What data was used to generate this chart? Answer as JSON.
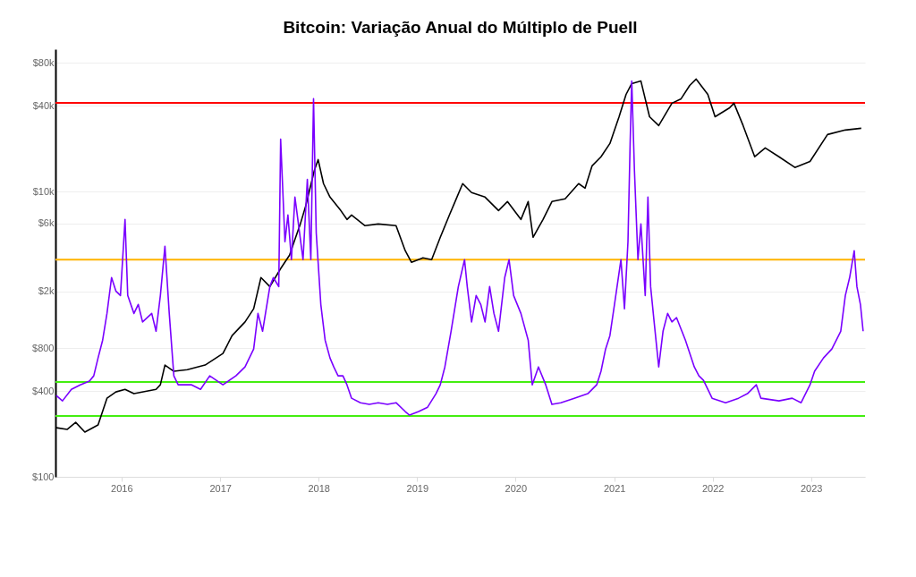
{
  "chart_data": {
    "type": "line",
    "title": "Bitcoin: Variação Anual do Múltiplo de Puell",
    "log": true,
    "grid": "y",
    "xlim": [
      "2015-05-01",
      "2023-07-20"
    ],
    "xticks": [
      "2016",
      "2017",
      "2018",
      "2019",
      "2020",
      "2021",
      "2022",
      "2023"
    ],
    "ylim": [
      100,
      100000
    ],
    "yticks": [
      {
        "value": 100,
        "label": "$100"
      },
      {
        "value": 400,
        "label": "$400"
      },
      {
        "value": 800,
        "label": "$800"
      },
      {
        "value": 2000,
        "label": "$2k"
      },
      {
        "value": 6000,
        "label": "$6k"
      },
      {
        "value": 10000,
        "label": "$10k"
      },
      {
        "value": 40000,
        "label": "$40k"
      },
      {
        "value": 80000,
        "label": "$80k"
      }
    ],
    "ref_lines": [
      {
        "axis": "y",
        "value": 42000,
        "color": "#ff0000"
      },
      {
        "axis": "y",
        "value": 3340,
        "color": "#ffb300"
      },
      {
        "axis": "y",
        "value": 462,
        "color": "#44ee11"
      },
      {
        "axis": "y",
        "value": 267,
        "color": "#44ee11"
      }
    ],
    "series": [
      {
        "color": "#000000",
        "x": [
          "2015-05-04",
          "2015-06-13",
          "2015-07-15",
          "2015-08-18",
          "2015-10-06",
          "2015-11-08",
          "2015-12-11",
          "2016-01-14",
          "2016-02-16",
          "2016-05-08",
          "2016-05-24",
          "2016-06-10",
          "2016-07-13",
          "2016-09-01",
          "2016-11-06",
          "2017-01-11",
          "2017-02-14",
          "2017-04-03",
          "2017-05-05",
          "2017-06-01",
          "2017-07-04",
          "2017-08-13",
          "2017-09-15",
          "2017-10-02",
          "2017-10-25",
          "2017-11-14",
          "2017-12-16",
          "2017-12-30",
          "2018-01-19",
          "2018-02-12",
          "2018-03-24",
          "2018-04-16",
          "2018-05-03",
          "2018-06-22",
          "2018-08-10",
          "2018-10-15",
          "2018-11-18",
          "2018-12-11",
          "2019-01-23",
          "2019-02-24",
          "2019-03-28",
          "2019-05-01",
          "2019-06-19",
          "2019-07-22",
          "2019-09-10",
          "2019-10-30",
          "2019-12-02",
          "2020-01-21",
          "2020-02-17",
          "2020-03-06",
          "2020-04-12",
          "2020-05-15",
          "2020-07-03",
          "2020-08-22",
          "2020-09-15",
          "2020-10-11",
          "2020-11-13",
          "2020-12-16",
          "2021-01-19",
          "2021-02-14",
          "2021-03-07",
          "2021-04-10",
          "2021-05-12",
          "2021-06-15",
          "2021-08-03",
          "2021-09-06",
          "2021-10-08",
          "2021-11-01",
          "2021-12-14",
          "2022-01-10",
          "2022-03-05",
          "2022-03-21",
          "2022-04-24",
          "2022-06-06",
          "2022-07-15",
          "2022-09-04",
          "2022-11-02",
          "2022-12-28",
          "2023-03-03",
          "2023-05-08",
          "2023-07-06"
        ],
        "values": [
          221,
          215,
          241,
          206,
          231,
          356,
          394,
          411,
          383,
          411,
          442,
          608,
          550,
          565,
          608,
          733,
          979,
          1220,
          1510,
          2500,
          2160,
          2890,
          3590,
          4460,
          5940,
          7940,
          14100,
          16800,
          11400,
          9170,
          7380,
          6390,
          6870,
          5780,
          5940,
          5780,
          3860,
          3200,
          3440,
          3340,
          4790,
          6870,
          11400,
          9860,
          9170,
          7380,
          8530,
          6390,
          8530,
          4790,
          6390,
          8530,
          8910,
          11400,
          10600,
          15200,
          17600,
          21800,
          33600,
          48200,
          57400,
          59800,
          33600,
          29100,
          41800,
          44900,
          55700,
          61700,
          48200,
          33600,
          38800,
          41800,
          29100,
          17600,
          20300,
          17600,
          14800,
          16300,
          25200,
          27100,
          27900
        ]
      },
      {
        "color": "#7a00ff",
        "x": [
          "2015-05-04",
          "2015-05-27",
          "2015-06-29",
          "2015-08-01",
          "2015-09-04",
          "2015-09-20",
          "2015-10-06",
          "2015-10-23",
          "2015-11-08",
          "2015-11-25",
          "2015-12-11",
          "2015-12-28",
          "2016-01-14",
          "2016-01-24",
          "2016-02-16",
          "2016-03-03",
          "2016-03-19",
          "2016-04-22",
          "2016-05-08",
          "2016-05-24",
          "2016-06-10",
          "2016-06-26",
          "2016-07-13",
          "2016-07-29",
          "2016-09-17",
          "2016-10-20",
          "2016-11-23",
          "2017-01-11",
          "2017-02-28",
          "2017-04-03",
          "2017-05-05",
          "2017-05-21",
          "2017-06-07",
          "2017-07-04",
          "2017-07-17",
          "2017-08-06",
          "2017-08-13",
          "2017-08-29",
          "2017-09-09",
          "2017-09-22",
          "2017-10-05",
          "2017-10-18",
          "2017-11-04",
          "2017-11-20",
          "2017-12-03",
          "2017-12-13",
          "2017-12-23",
          "2018-01-09",
          "2018-01-25",
          "2018-02-12",
          "2018-02-26",
          "2018-03-14",
          "2018-04-01",
          "2018-04-16",
          "2018-05-03",
          "2018-06-05",
          "2018-07-08",
          "2018-08-10",
          "2018-09-13",
          "2018-10-15",
          "2018-11-18",
          "2018-12-04",
          "2019-01-07",
          "2019-02-09",
          "2019-03-12",
          "2019-03-28",
          "2019-04-14",
          "2019-05-07",
          "2019-06-03",
          "2019-06-26",
          "2019-07-06",
          "2019-07-22",
          "2019-08-08",
          "2019-08-25",
          "2019-09-10",
          "2019-09-27",
          "2019-10-13",
          "2019-10-30",
          "2019-11-22",
          "2019-12-08",
          "2019-12-25",
          "2020-01-21",
          "2020-02-17",
          "2020-03-03",
          "2020-03-26",
          "2020-04-22",
          "2020-05-15",
          "2020-06-17",
          "2020-08-06",
          "2020-09-25",
          "2020-10-28",
          "2020-11-13",
          "2020-11-30",
          "2020-12-16",
          "2021-01-02",
          "2021-01-26",
          "2021-02-08",
          "2021-02-21",
          "2021-03-01",
          "2021-03-07",
          "2021-03-17",
          "2021-03-30",
          "2021-04-10",
          "2021-04-26",
          "2021-05-06",
          "2021-05-16",
          "2021-05-29",
          "2021-06-15",
          "2021-07-01",
          "2021-07-18",
          "2021-08-03",
          "2021-08-20",
          "2021-09-22",
          "2021-10-25",
          "2021-11-11",
          "2021-11-28",
          "2021-12-30",
          "2022-02-18",
          "2022-04-07",
          "2022-05-10",
          "2022-06-12",
          "2022-06-29",
          "2022-09-04",
          "2022-10-23",
          "2022-11-25",
          "2022-12-28",
          "2023-01-14",
          "2023-02-16",
          "2023-03-19",
          "2023-04-21",
          "2023-05-08",
          "2023-05-24",
          "2023-06-10",
          "2023-06-20",
          "2023-07-03",
          "2023-07-13"
        ],
        "values": [
          372,
          341,
          411,
          442,
          469,
          511,
          682,
          910,
          1400,
          2500,
          2010,
          1870,
          6390,
          1870,
          1400,
          1620,
          1220,
          1400,
          1050,
          1870,
          4150,
          1400,
          511,
          442,
          442,
          411,
          511,
          442,
          511,
          590,
          788,
          1400,
          1050,
          2160,
          2500,
          2160,
          23400,
          4460,
          6870,
          3340,
          9170,
          5940,
          3340,
          12200,
          3340,
          44900,
          5150,
          1620,
          910,
          682,
          590,
          511,
          511,
          442,
          356,
          331,
          322,
          331,
          322,
          331,
          287,
          271,
          287,
          308,
          383,
          442,
          590,
          1050,
          2160,
          3340,
          2160,
          1220,
          1870,
          1620,
          1220,
          2160,
          1400,
          1050,
          2500,
          3340,
          1870,
          1400,
          910,
          442,
          590,
          442,
          322,
          331,
          356,
          383,
          442,
          550,
          788,
          979,
          1620,
          3340,
          1510,
          4460,
          21800,
          59800,
          14100,
          3340,
          5940,
          1870,
          9170,
          2160,
          1220,
          590,
          1050,
          1400,
          1220,
          1310,
          910,
          590,
          511,
          475,
          356,
          331,
          356,
          383,
          442,
          356,
          341,
          356,
          331,
          442,
          550,
          682,
          788,
          1050,
          1870,
          2500,
          3860,
          2160,
          1620,
          1050
        ]
      }
    ]
  }
}
